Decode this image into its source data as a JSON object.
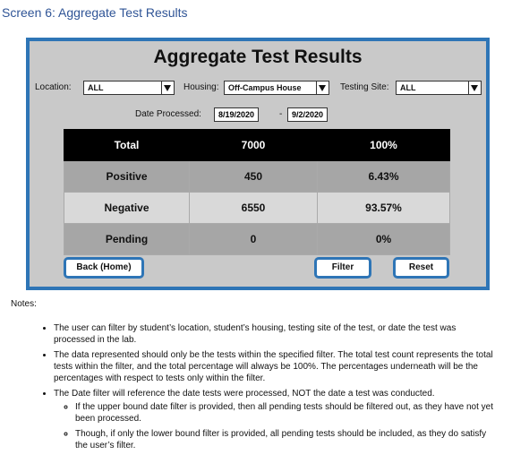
{
  "page": {
    "heading": "Screen 6: Aggregate Test Results"
  },
  "panel": {
    "title": "Aggregate Test Results",
    "filters": {
      "location_label": "Location:",
      "location_value": "ALL",
      "housing_label": "Housing:",
      "housing_value": "Off-Campus House",
      "testing_site_label": "Testing Site:",
      "testing_site_value": "ALL",
      "date_label": "Date Processed:",
      "date_from": "8/19/2020",
      "date_sep": "-",
      "date_to": "9/2/2020"
    },
    "table": {
      "rows": [
        {
          "label": "Total",
          "count": "7000",
          "percent": "100%"
        },
        {
          "label": "Positive",
          "count": "450",
          "percent": "6.43%"
        },
        {
          "label": "Negative",
          "count": "6550",
          "percent": "93.57%"
        },
        {
          "label": "Pending",
          "count": "0",
          "percent": "0%"
        }
      ]
    },
    "buttons": {
      "back": "Back (Home)",
      "filter": "Filter",
      "reset": "Reset"
    }
  },
  "notes": {
    "label": "Notes:",
    "items": [
      "The user can filter by student’s location, student’s housing, testing site of the test, or date the test was processed in the lab.",
      "The data represented should only be the tests within the specified filter. The total test count represents the total tests within the filter, and the total percentage will always be 100%. The percentages underneath will be the percentages with respect to tests only within the filter.",
      "The Date filter will reference the date tests were processed, NOT the date a test was conducted."
    ],
    "sub_items": [
      "If the upper bound date filter is provided, then all pending tests should be filtered out, as they have not yet been processed.",
      "Though, if only the lower bound filter is provided, all pending tests should be included, as they do satisfy the user’s filter."
    ]
  },
  "colors": {
    "accent": "#2e75b6",
    "heading": "#2f5496",
    "panel_bg": "#c9c9c9"
  }
}
